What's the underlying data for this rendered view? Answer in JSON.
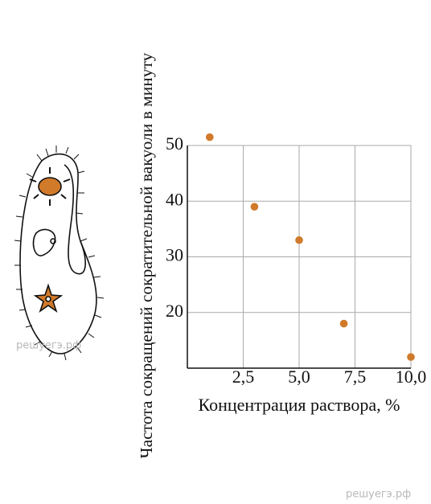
{
  "chart_data": {
    "type": "scatter",
    "x_label": "Концентрация раствора, %",
    "y_label": "Частота сокращений сократительной вакуоли в минуту",
    "x": [
      1,
      3,
      5,
      7,
      10
    ],
    "values": [
      51.5,
      39,
      33,
      18,
      12
    ],
    "color": "#d07a2a",
    "xlim": [
      0,
      10
    ],
    "xticks": [
      {
        "value": 2.5,
        "label": "2,5"
      },
      {
        "value": 5,
        "label": "5,0"
      },
      {
        "value": 7.5,
        "label": "7,5"
      },
      {
        "value": 10,
        "label": "10,0"
      }
    ],
    "ylim": [
      10,
      50
    ],
    "yticks": [
      20,
      30,
      40,
      50
    ],
    "grid": true
  },
  "watermarks": [
    "решуегэ.рф",
    "решуегэ.рф"
  ]
}
